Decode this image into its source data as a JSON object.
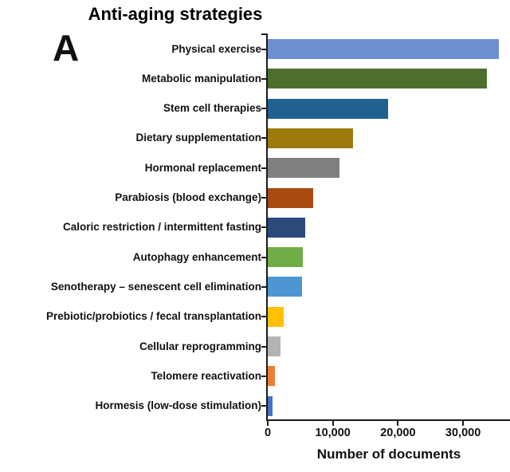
{
  "panel_label": "A",
  "chart_data": {
    "type": "bar",
    "orientation": "horizontal",
    "title": "Anti-aging strategies",
    "xlabel": "Number of documents",
    "categories": [
      "Physical exercise",
      "Metabolic manipulation",
      "Stem cell therapies",
      "Dietary supplementation",
      "Hormonal replacement",
      "Parabiosis (blood exchange)",
      "Caloric restriction / intermittent fasting",
      "Autophagy enhancement",
      "Senotherapy – senescent cell elimination",
      "Prebiotic/probiotics / fecal transplantation",
      "Cellular reprogramming",
      "Telomere reactivation",
      "Hormesis (low-dose stimulation)"
    ],
    "values": [
      35500,
      33700,
      18500,
      13100,
      11000,
      7000,
      5800,
      5400,
      5300,
      2450,
      1950,
      1100,
      700
    ],
    "bar_colors": [
      "#6D8FD2",
      "#4C6E2F",
      "#20618E",
      "#9C7A0E",
      "#7F7F7F",
      "#A94B10",
      "#2B4A7B",
      "#70AD47",
      "#4D96D1",
      "#FFC000",
      "#B3B3B3",
      "#ED7D31",
      "#4472C4"
    ],
    "x_ticks": [
      0,
      10000,
      20000,
      30000
    ],
    "x_tick_labels": [
      "0",
      "10,000",
      "20,000",
      "30,000"
    ],
    "xlim": [
      0,
      37200
    ],
    "grid": false,
    "axis_color": "#1a1a1a"
  }
}
